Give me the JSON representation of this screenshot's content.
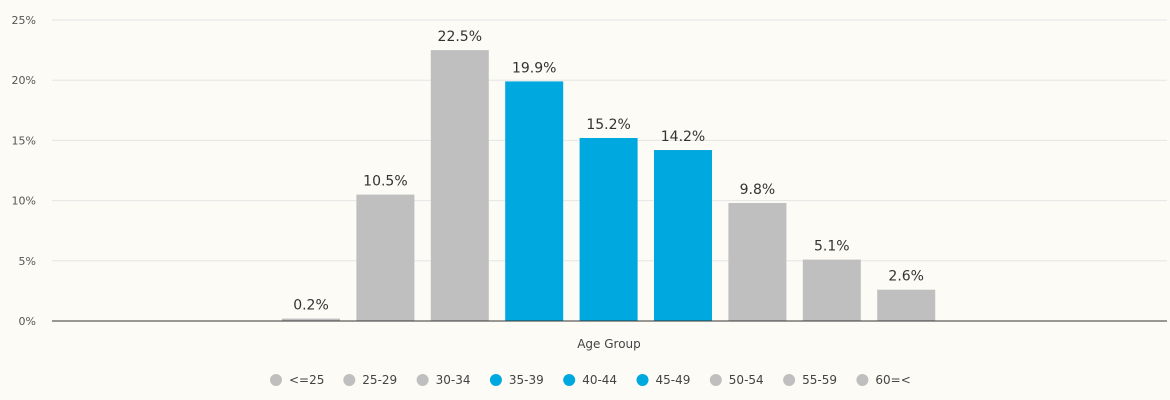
{
  "chart_data": {
    "type": "bar",
    "xlabel": "Age Group",
    "ylabel": "",
    "ylim": [
      0,
      25
    ],
    "yticks": [
      {
        "value": 0,
        "label": "0%"
      },
      {
        "value": 5,
        "label": "5%"
      },
      {
        "value": 10,
        "label": "10%"
      },
      {
        "value": 15,
        "label": "15%"
      },
      {
        "value": 20,
        "label": "20%"
      },
      {
        "value": 25,
        "label": "25%"
      }
    ],
    "grid": true,
    "legend_position": "bottom",
    "colors": {
      "gray": "#bfbfbf",
      "blue": "#00a8e0"
    },
    "series": [
      {
        "name": "<=25",
        "value": 0.2,
        "label": "0.2%",
        "color": "#bfbfbf"
      },
      {
        "name": "25-29",
        "value": 10.5,
        "label": "10.5%",
        "color": "#bfbfbf"
      },
      {
        "name": "30-34",
        "value": 22.5,
        "label": "22.5%",
        "color": "#bfbfbf"
      },
      {
        "name": "35-39",
        "value": 19.9,
        "label": "19.9%",
        "color": "#00a8e0"
      },
      {
        "name": "40-44",
        "value": 15.2,
        "label": "15.2%",
        "color": "#00a8e0"
      },
      {
        "name": "45-49",
        "value": 14.2,
        "label": "14.2%",
        "color": "#00a8e0"
      },
      {
        "name": "50-54",
        "value": 9.8,
        "label": "9.8%",
        "color": "#bfbfbf"
      },
      {
        "name": "55-59",
        "value": 5.1,
        "label": "5.1%",
        "color": "#bfbfbf"
      },
      {
        "name": "60=<",
        "value": 2.6,
        "label": "2.6%",
        "color": "#bfbfbf"
      }
    ]
  }
}
